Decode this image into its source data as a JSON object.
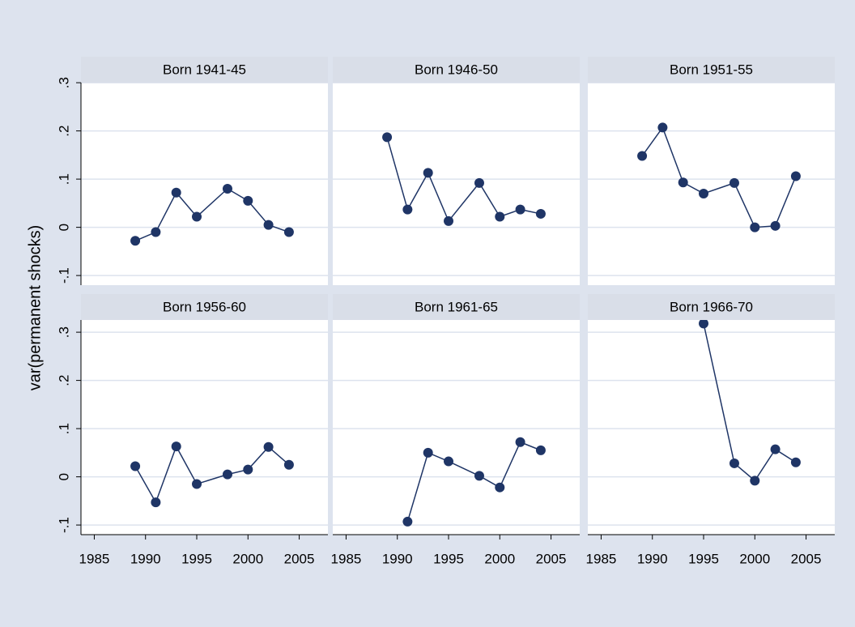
{
  "chart_data": {
    "type": "line",
    "y_label": "var(permanent shocks)",
    "color": "#1f3566",
    "xlim": [
      1983.7,
      2007.8
    ],
    "xticks": [
      1985,
      1990,
      1995,
      2000,
      2005
    ],
    "ylim": [
      -0.12,
      0.335
    ],
    "yticks": [
      {
        "value": -0.1,
        "label": "-.1"
      },
      0,
      {
        "value": 0.1,
        "label": ".1"
      },
      {
        "value": 0.2,
        "label": ".2"
      },
      {
        "value": 0.3,
        "label": ".3"
      }
    ],
    "grid": true,
    "panels": [
      {
        "title": "Born 1941-45",
        "x": [
          1989,
          1991,
          1993,
          1995,
          1998,
          2000,
          2002,
          2004
        ],
        "values": [
          -0.028,
          -0.01,
          0.072,
          0.022,
          0.08,
          0.055,
          0.005,
          -0.01
        ]
      },
      {
        "title": "Born 1946-50",
        "x": [
          1989,
          1991,
          1993,
          1995,
          1998,
          2000,
          2002,
          2004
        ],
        "values": [
          0.187,
          0.037,
          0.113,
          0.013,
          0.092,
          0.022,
          0.037,
          0.028
        ]
      },
      {
        "title": "Born 1951-55",
        "x": [
          1989,
          1991,
          1993,
          1995,
          1998,
          2000,
          2002,
          2004
        ],
        "values": [
          0.148,
          0.207,
          0.093,
          0.07,
          0.092,
          0.0,
          0.003,
          0.106
        ]
      },
      {
        "title": "Born 1956-60",
        "x": [
          1989,
          1991,
          1993,
          1995,
          1998,
          2000,
          2002,
          2004
        ],
        "values": [
          0.022,
          -0.053,
          0.063,
          -0.015,
          0.005,
          0.015,
          0.062,
          0.025
        ]
      },
      {
        "title": "Born 1961-65",
        "x": [
          1991,
          1993,
          1995,
          1998,
          2000,
          2002,
          2004
        ],
        "values": [
          -0.093,
          0.05,
          0.032,
          0.002,
          -0.022,
          0.072,
          0.055
        ]
      },
      {
        "title": "Born 1966-70",
        "x": [
          1995,
          1998,
          2000,
          2002,
          2004
        ],
        "values": [
          0.318,
          0.028,
          -0.008,
          0.057,
          0.03
        ]
      }
    ]
  }
}
